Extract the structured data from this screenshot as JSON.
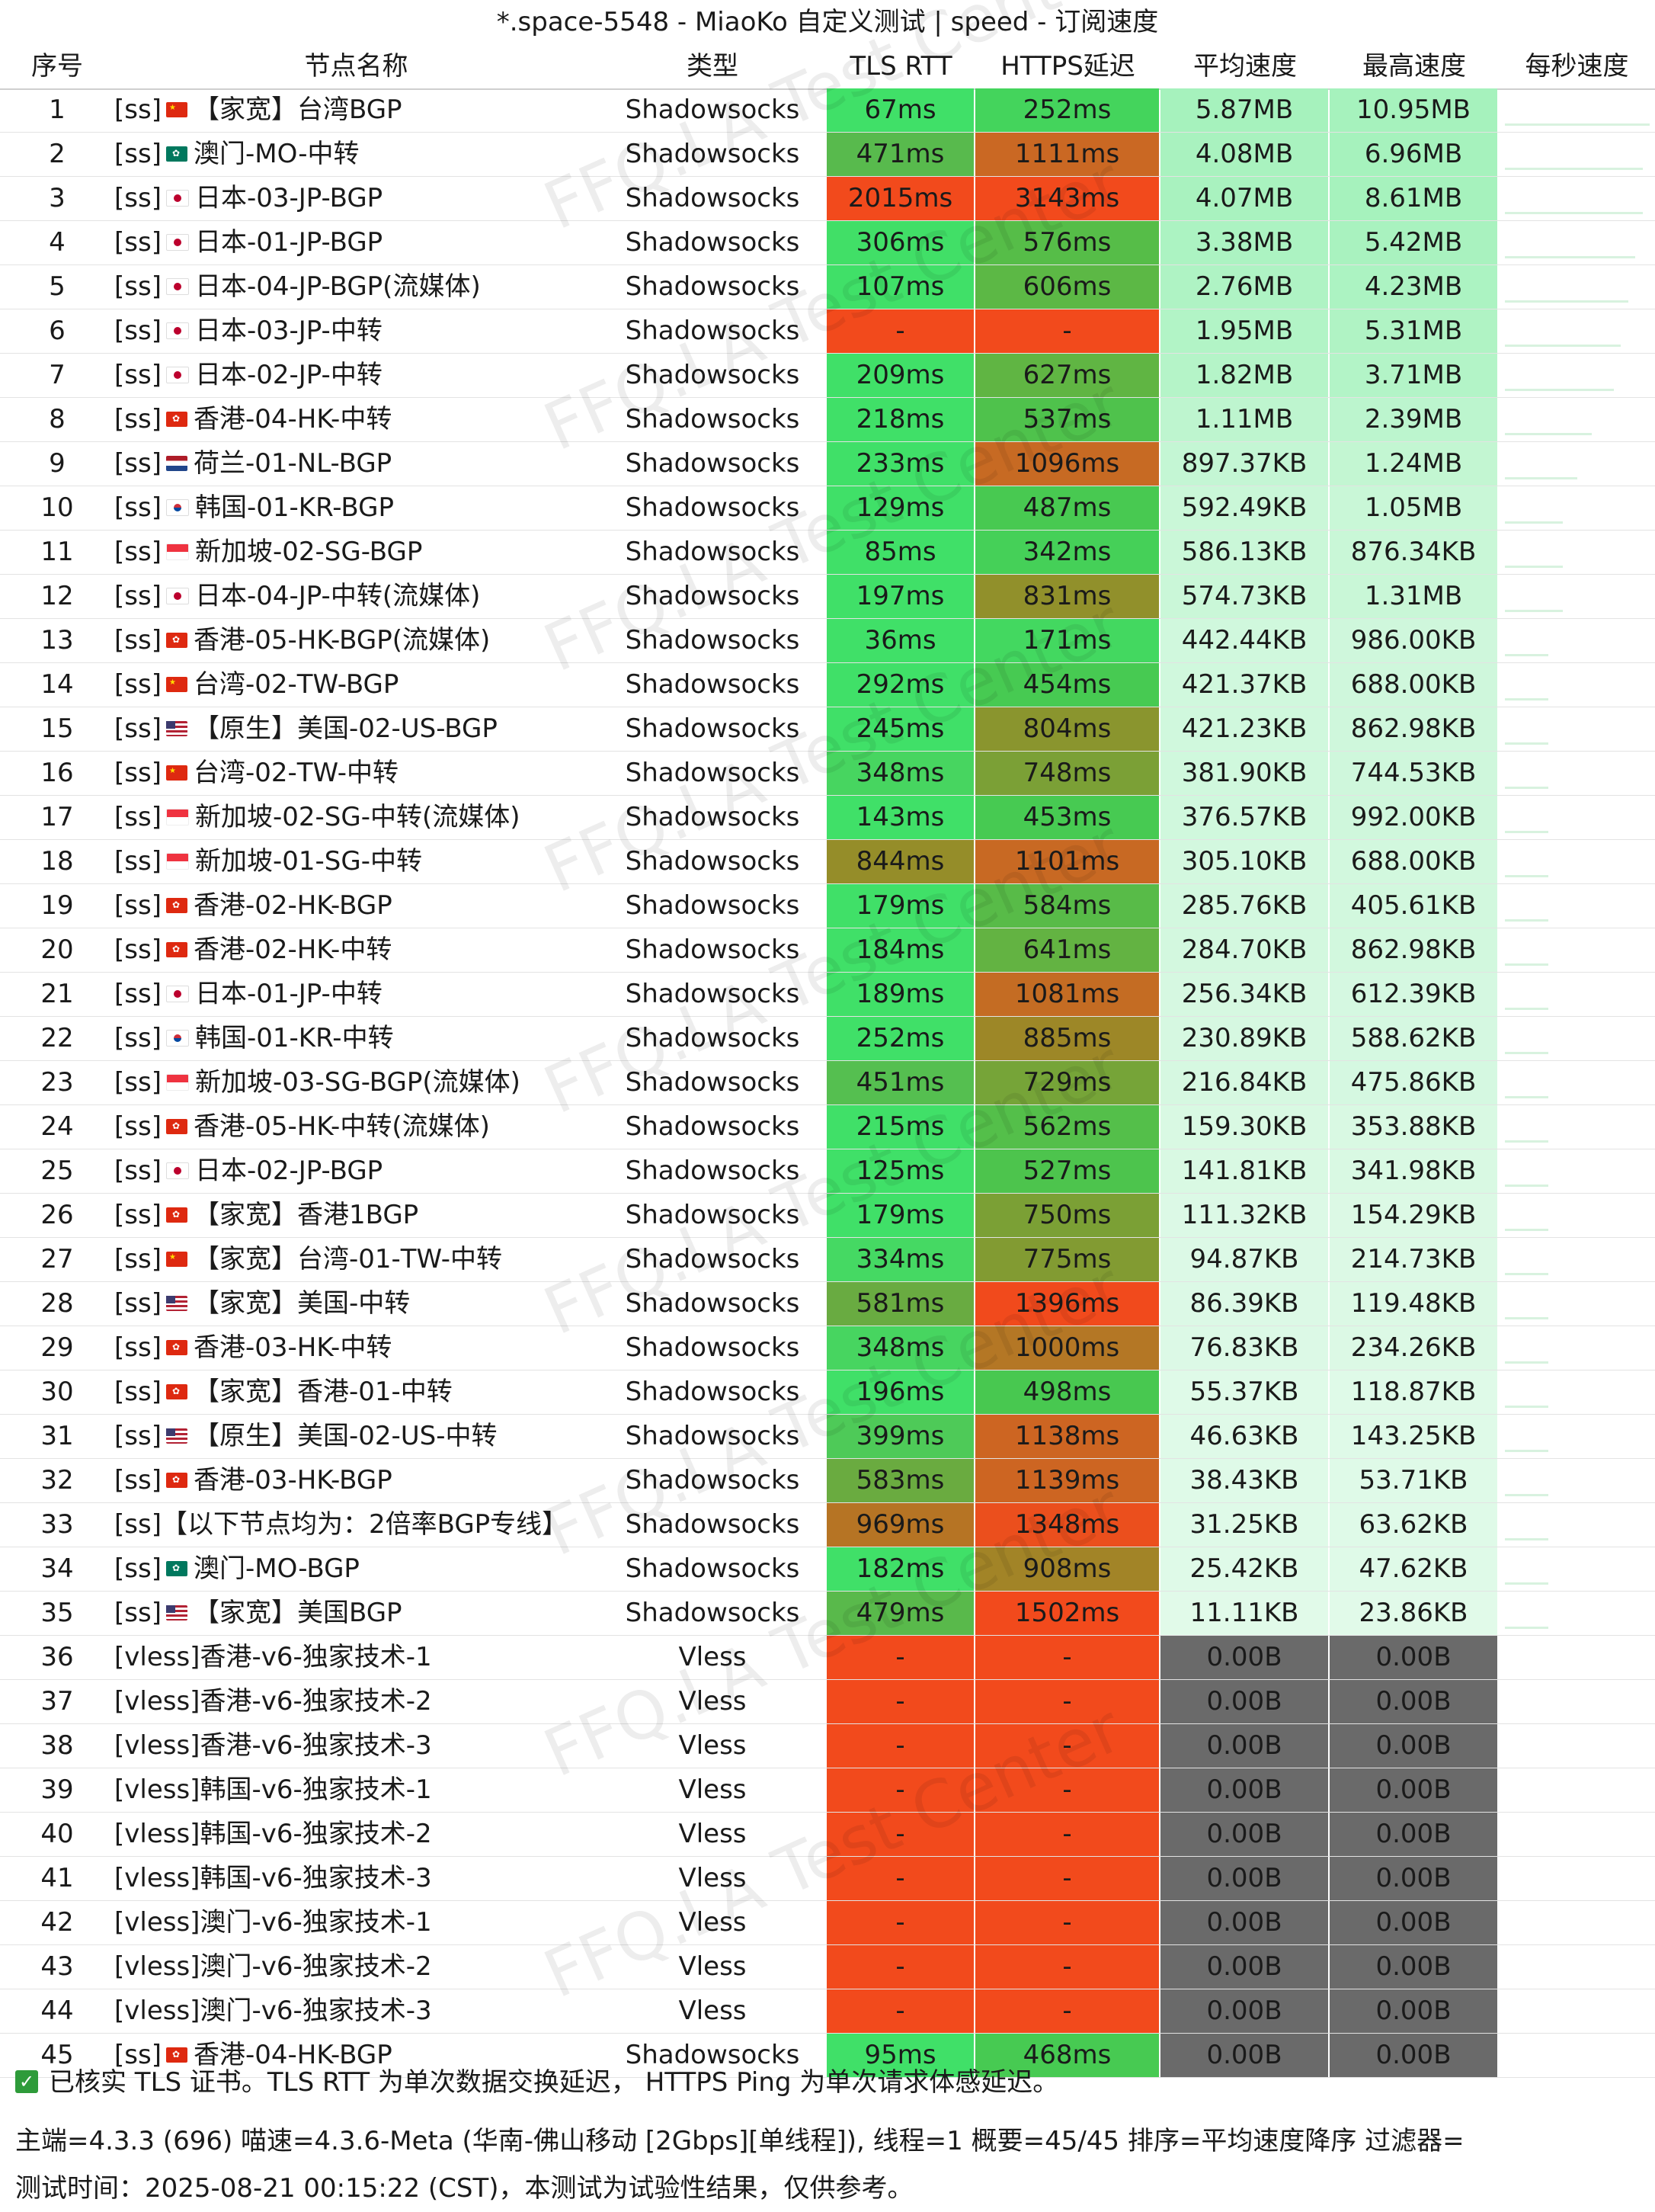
{
  "window": {
    "title": "*.space-5548 - MiaoKo 自定义测试 | speed - 订阅速度"
  },
  "columns": [
    "序号",
    "节点名称",
    "类型",
    "TLS RTT",
    "HTTPS延迟",
    "平均速度",
    "最高速度",
    "每秒速度"
  ],
  "colors": {
    "tls_green": "#3ddc6a",
    "https_red": "#f24a1c",
    "speed_light": "#b9f5c9",
    "speed_pale": "#d9f8e3",
    "speed_zero": "#6a6a6a"
  },
  "watermark": "FFQ.LA Test Center",
  "rows": [
    {
      "idx": "1",
      "name": "[ss] 🇨🇳 【家宽】台湾BGP",
      "flag": "cn",
      "type": "Shadowsocks",
      "tls": "67ms",
      "https": "252ms",
      "avg": "5.87MB",
      "max": "10.95MB",
      "tls_ms": 67,
      "https_ms": 252,
      "avg_level": 1.0
    },
    {
      "idx": "2",
      "name": "[ss] 🇲🇴 澳门-MO-中转",
      "flag": "mo",
      "type": "Shadowsocks",
      "tls": "471ms",
      "https": "1111ms",
      "avg": "4.08MB",
      "max": "6.96MB",
      "tls_ms": 471,
      "https_ms": 1111,
      "avg_level": 0.95
    },
    {
      "idx": "3",
      "name": "[ss] 🇯🇵 日本-03-JP-BGP",
      "flag": "jp",
      "type": "Shadowsocks",
      "tls": "2015ms",
      "https": "3143ms",
      "avg": "4.07MB",
      "max": "8.61MB",
      "tls_ms": 2015,
      "https_ms": 3143,
      "avg_level": 0.95
    },
    {
      "idx": "4",
      "name": "[ss] 🇯🇵 日本-01-JP-BGP",
      "flag": "jp",
      "type": "Shadowsocks",
      "tls": "306ms",
      "https": "576ms",
      "avg": "3.38MB",
      "max": "5.42MB",
      "tls_ms": 306,
      "https_ms": 576,
      "avg_level": 0.9
    },
    {
      "idx": "5",
      "name": "[ss] 🇯🇵 日本-04-JP-BGP(流媒体)",
      "flag": "jp",
      "type": "Shadowsocks",
      "tls": "107ms",
      "https": "606ms",
      "avg": "2.76MB",
      "max": "4.23MB",
      "tls_ms": 107,
      "https_ms": 606,
      "avg_level": 0.85
    },
    {
      "idx": "6",
      "name": "[ss] 🇯🇵 日本-03-JP-中转",
      "flag": "jp",
      "type": "Shadowsocks",
      "tls": "-",
      "https": "-",
      "avg": "1.95MB",
      "max": "5.31MB",
      "tls_ms": null,
      "https_ms": null,
      "avg_level": 0.8
    },
    {
      "idx": "7",
      "name": "[ss] 🇯🇵 日本-02-JP-中转",
      "flag": "jp",
      "type": "Shadowsocks",
      "tls": "209ms",
      "https": "627ms",
      "avg": "1.82MB",
      "max": "3.71MB",
      "tls_ms": 209,
      "https_ms": 627,
      "avg_level": 0.75
    },
    {
      "idx": "8",
      "name": "[ss] 🇭🇰 香港-04-HK-中转",
      "flag": "hk",
      "type": "Shadowsocks",
      "tls": "218ms",
      "https": "537ms",
      "avg": "1.11MB",
      "max": "2.39MB",
      "tls_ms": 218,
      "https_ms": 537,
      "avg_level": 0.6
    },
    {
      "idx": "9",
      "name": "[ss] 🇳🇱 荷兰-01-NL-BGP",
      "flag": "nl",
      "type": "Shadowsocks",
      "tls": "233ms",
      "https": "1096ms",
      "avg": "897.37KB",
      "max": "1.24MB",
      "tls_ms": 233,
      "https_ms": 1096,
      "avg_level": 0.5
    },
    {
      "idx": "10",
      "name": "[ss] 🇰🇷 韩国-01-KR-BGP",
      "flag": "kr",
      "type": "Shadowsocks",
      "tls": "129ms",
      "https": "487ms",
      "avg": "592.49KB",
      "max": "1.05MB",
      "tls_ms": 129,
      "https_ms": 487,
      "avg_level": 0.4
    },
    {
      "idx": "11",
      "name": "[ss] 🇸🇬 新加坡-02-SG-BGP",
      "flag": "sg",
      "type": "Shadowsocks",
      "tls": "85ms",
      "https": "342ms",
      "avg": "586.13KB",
      "max": "876.34KB",
      "tls_ms": 85,
      "https_ms": 342,
      "avg_level": 0.4
    },
    {
      "idx": "12",
      "name": "[ss] 🇯🇵 日本-04-JP-中转(流媒体)",
      "flag": "jp",
      "type": "Shadowsocks",
      "tls": "197ms",
      "https": "831ms",
      "avg": "574.73KB",
      "max": "1.31MB",
      "tls_ms": 197,
      "https_ms": 831,
      "avg_level": 0.4
    },
    {
      "idx": "13",
      "name": "[ss] 🇭🇰 香港-05-HK-BGP(流媒体)",
      "flag": "hk",
      "type": "Shadowsocks",
      "tls": "36ms",
      "https": "171ms",
      "avg": "442.44KB",
      "max": "986.00KB",
      "tls_ms": 36,
      "https_ms": 171,
      "avg_level": 0.3
    },
    {
      "idx": "14",
      "name": "[ss] 🇨🇳 台湾-02-TW-BGP",
      "flag": "cn",
      "type": "Shadowsocks",
      "tls": "292ms",
      "https": "454ms",
      "avg": "421.37KB",
      "max": "688.00KB",
      "tls_ms": 292,
      "https_ms": 454,
      "avg_level": 0.3
    },
    {
      "idx": "15",
      "name": "[ss] 🇺🇸 【原生】美国-02-US-BGP",
      "flag": "us",
      "type": "Shadowsocks",
      "tls": "245ms",
      "https": "804ms",
      "avg": "421.23KB",
      "max": "862.98KB",
      "tls_ms": 245,
      "https_ms": 804,
      "avg_level": 0.3
    },
    {
      "idx": "16",
      "name": "[ss] 🇨🇳 台湾-02-TW-中转",
      "flag": "cn",
      "type": "Shadowsocks",
      "tls": "348ms",
      "https": "748ms",
      "avg": "381.90KB",
      "max": "744.53KB",
      "tls_ms": 348,
      "https_ms": 748,
      "avg_level": 0.3
    },
    {
      "idx": "17",
      "name": "[ss] 🇸🇬 新加坡-02-SG-中转(流媒体)",
      "flag": "sg",
      "type": "Shadowsocks",
      "tls": "143ms",
      "https": "453ms",
      "avg": "376.57KB",
      "max": "992.00KB",
      "tls_ms": 143,
      "https_ms": 453,
      "avg_level": 0.3
    },
    {
      "idx": "18",
      "name": "[ss] 🇸🇬 新加坡-01-SG-中转",
      "flag": "sg",
      "type": "Shadowsocks",
      "tls": "844ms",
      "https": "1101ms",
      "avg": "305.10KB",
      "max": "688.00KB",
      "tls_ms": 844,
      "https_ms": 1101,
      "avg_level": 0.25
    },
    {
      "idx": "19",
      "name": "[ss] 🇭🇰 香港-02-HK-BGP",
      "flag": "hk",
      "type": "Shadowsocks",
      "tls": "179ms",
      "https": "584ms",
      "avg": "285.76KB",
      "max": "405.61KB",
      "tls_ms": 179,
      "https_ms": 584,
      "avg_level": 0.25
    },
    {
      "idx": "20",
      "name": "[ss] 🇭🇰 香港-02-HK-中转",
      "flag": "hk",
      "type": "Shadowsocks",
      "tls": "184ms",
      "https": "641ms",
      "avg": "284.70KB",
      "max": "862.98KB",
      "tls_ms": 184,
      "https_ms": 641,
      "avg_level": 0.25
    },
    {
      "idx": "21",
      "name": "[ss] 🇯🇵 日本-01-JP-中转",
      "flag": "jp",
      "type": "Shadowsocks",
      "tls": "189ms",
      "https": "1081ms",
      "avg": "256.34KB",
      "max": "612.39KB",
      "tls_ms": 189,
      "https_ms": 1081,
      "avg_level": 0.2
    },
    {
      "idx": "22",
      "name": "[ss] 🇰🇷 韩国-01-KR-中转",
      "flag": "kr",
      "type": "Shadowsocks",
      "tls": "252ms",
      "https": "885ms",
      "avg": "230.89KB",
      "max": "588.62KB",
      "tls_ms": 252,
      "https_ms": 885,
      "avg_level": 0.2
    },
    {
      "idx": "23",
      "name": "[ss] 🇸🇬 新加坡-03-SG-BGP(流媒体)",
      "flag": "sg",
      "type": "Shadowsocks",
      "tls": "451ms",
      "https": "729ms",
      "avg": "216.84KB",
      "max": "475.86KB",
      "tls_ms": 451,
      "https_ms": 729,
      "avg_level": 0.2
    },
    {
      "idx": "24",
      "name": "[ss] 🇭🇰 香港-05-HK-中转(流媒体)",
      "flag": "hk",
      "type": "Shadowsocks",
      "tls": "215ms",
      "https": "562ms",
      "avg": "159.30KB",
      "max": "353.88KB",
      "tls_ms": 215,
      "https_ms": 562,
      "avg_level": 0.15
    },
    {
      "idx": "25",
      "name": "[ss] 🇯🇵 日本-02-JP-BGP",
      "flag": "jp",
      "type": "Shadowsocks",
      "tls": "125ms",
      "https": "527ms",
      "avg": "141.81KB",
      "max": "341.98KB",
      "tls_ms": 125,
      "https_ms": 527,
      "avg_level": 0.15
    },
    {
      "idx": "26",
      "name": "[ss] 🇭🇰 【家宽】香港1BGP",
      "flag": "hk",
      "type": "Shadowsocks",
      "tls": "179ms",
      "https": "750ms",
      "avg": "111.32KB",
      "max": "154.29KB",
      "tls_ms": 179,
      "https_ms": 750,
      "avg_level": 0.1
    },
    {
      "idx": "27",
      "name": "[ss] 🇨🇳 【家宽】台湾-01-TW-中转",
      "flag": "cn",
      "type": "Shadowsocks",
      "tls": "334ms",
      "https": "775ms",
      "avg": "94.87KB",
      "max": "214.73KB",
      "tls_ms": 334,
      "https_ms": 775,
      "avg_level": 0.1
    },
    {
      "idx": "28",
      "name": "[ss] 🇺🇸 【家宽】美国-中转",
      "flag": "us",
      "type": "Shadowsocks",
      "tls": "581ms",
      "https": "1396ms",
      "avg": "86.39KB",
      "max": "119.48KB",
      "tls_ms": 581,
      "https_ms": 1396,
      "avg_level": 0.1
    },
    {
      "idx": "29",
      "name": "[ss] 🇭🇰 香港-03-HK-中转",
      "flag": "hk",
      "type": "Shadowsocks",
      "tls": "348ms",
      "https": "1000ms",
      "avg": "76.83KB",
      "max": "234.26KB",
      "tls_ms": 348,
      "https_ms": 1000,
      "avg_level": 0.1
    },
    {
      "idx": "30",
      "name": "[ss] 🇭🇰 【家宽】香港-01-中转",
      "flag": "hk",
      "type": "Shadowsocks",
      "tls": "196ms",
      "https": "498ms",
      "avg": "55.37KB",
      "max": "118.87KB",
      "tls_ms": 196,
      "https_ms": 498,
      "avg_level": 0.05
    },
    {
      "idx": "31",
      "name": "[ss] 🇺🇸 【原生】美国-02-US-中转",
      "flag": "us",
      "type": "Shadowsocks",
      "tls": "399ms",
      "https": "1138ms",
      "avg": "46.63KB",
      "max": "143.25KB",
      "tls_ms": 399,
      "https_ms": 1138,
      "avg_level": 0.05
    },
    {
      "idx": "32",
      "name": "[ss] 🇭🇰 香港-03-HK-BGP",
      "flag": "hk",
      "type": "Shadowsocks",
      "tls": "583ms",
      "https": "1139ms",
      "avg": "38.43KB",
      "max": "53.71KB",
      "tls_ms": 583,
      "https_ms": 1139,
      "avg_level": 0.05
    },
    {
      "idx": "33",
      "name": "[ss]【以下节点均为：2倍率BGP专线】",
      "flag": "",
      "type": "Shadowsocks",
      "tls": "969ms",
      "https": "1348ms",
      "avg": "31.25KB",
      "max": "63.62KB",
      "tls_ms": 969,
      "https_ms": 1348,
      "avg_level": 0.05
    },
    {
      "idx": "34",
      "name": "[ss] 🇲🇴 澳门-MO-BGP",
      "flag": "mo",
      "type": "Shadowsocks",
      "tls": "182ms",
      "https": "908ms",
      "avg": "25.42KB",
      "max": "47.62KB",
      "tls_ms": 182,
      "https_ms": 908,
      "avg_level": 0.05
    },
    {
      "idx": "35",
      "name": "[ss] 🇺🇸 【家宽】美国BGP",
      "flag": "us",
      "type": "Shadowsocks",
      "tls": "479ms",
      "https": "1502ms",
      "avg": "11.11KB",
      "max": "23.86KB",
      "tls_ms": 479,
      "https_ms": 1502,
      "avg_level": 0.02
    },
    {
      "idx": "36",
      "name": "[vless]香港-v6-独家技术-1",
      "flag": "",
      "type": "Vless",
      "tls": "-",
      "https": "-",
      "avg": "0.00B",
      "max": "0.00B",
      "tls_ms": null,
      "https_ms": null,
      "avg_level": 0
    },
    {
      "idx": "37",
      "name": "[vless]香港-v6-独家技术-2",
      "flag": "",
      "type": "Vless",
      "tls": "-",
      "https": "-",
      "avg": "0.00B",
      "max": "0.00B",
      "tls_ms": null,
      "https_ms": null,
      "avg_level": 0
    },
    {
      "idx": "38",
      "name": "[vless]香港-v6-独家技术-3",
      "flag": "",
      "type": "Vless",
      "tls": "-",
      "https": "-",
      "avg": "0.00B",
      "max": "0.00B",
      "tls_ms": null,
      "https_ms": null,
      "avg_level": 0
    },
    {
      "idx": "39",
      "name": "[vless]韩国-v6-独家技术-1",
      "flag": "",
      "type": "Vless",
      "tls": "-",
      "https": "-",
      "avg": "0.00B",
      "max": "0.00B",
      "tls_ms": null,
      "https_ms": null,
      "avg_level": 0
    },
    {
      "idx": "40",
      "name": "[vless]韩国-v6-独家技术-2",
      "flag": "",
      "type": "Vless",
      "tls": "-",
      "https": "-",
      "avg": "0.00B",
      "max": "0.00B",
      "tls_ms": null,
      "https_ms": null,
      "avg_level": 0
    },
    {
      "idx": "41",
      "name": "[vless]韩国-v6-独家技术-3",
      "flag": "",
      "type": "Vless",
      "tls": "-",
      "https": "-",
      "avg": "0.00B",
      "max": "0.00B",
      "tls_ms": null,
      "https_ms": null,
      "avg_level": 0
    },
    {
      "idx": "42",
      "name": "[vless]澳门-v6-独家技术-1",
      "flag": "",
      "type": "Vless",
      "tls": "-",
      "https": "-",
      "avg": "0.00B",
      "max": "0.00B",
      "tls_ms": null,
      "https_ms": null,
      "avg_level": 0
    },
    {
      "idx": "43",
      "name": "[vless]澳门-v6-独家技术-2",
      "flag": "",
      "type": "Vless",
      "tls": "-",
      "https": "-",
      "avg": "0.00B",
      "max": "0.00B",
      "tls_ms": null,
      "https_ms": null,
      "avg_level": 0
    },
    {
      "idx": "44",
      "name": "[vless]澳门-v6-独家技术-3",
      "flag": "",
      "type": "Vless",
      "tls": "-",
      "https": "-",
      "avg": "0.00B",
      "max": "0.00B",
      "tls_ms": null,
      "https_ms": null,
      "avg_level": 0
    },
    {
      "idx": "45",
      "name": "[ss] 🇭🇰 香港-04-HK-BGP",
      "flag": "hk",
      "type": "Shadowsocks",
      "tls": "95ms",
      "https": "468ms",
      "avg": "0.00B",
      "max": "0.00B",
      "tls_ms": 95,
      "https_ms": 468,
      "avg_level": 0
    }
  ],
  "footer": {
    "line1": "已核实 TLS 证书。TLS RTT 为单次数据交换延迟， HTTPS Ping 为单次请求体感延迟。",
    "line2": "主端=4.3.3 (696) 喵速=4.3.6-Meta (华南-佛山移动 [2Gbps][单线程]), 线程=1 概要=45/45 排序=平均速度降序 过滤器=",
    "line3": "测试时间：2025-08-21 00:15:22 (CST)，本测试为试验性结果，仅供参考。"
  }
}
